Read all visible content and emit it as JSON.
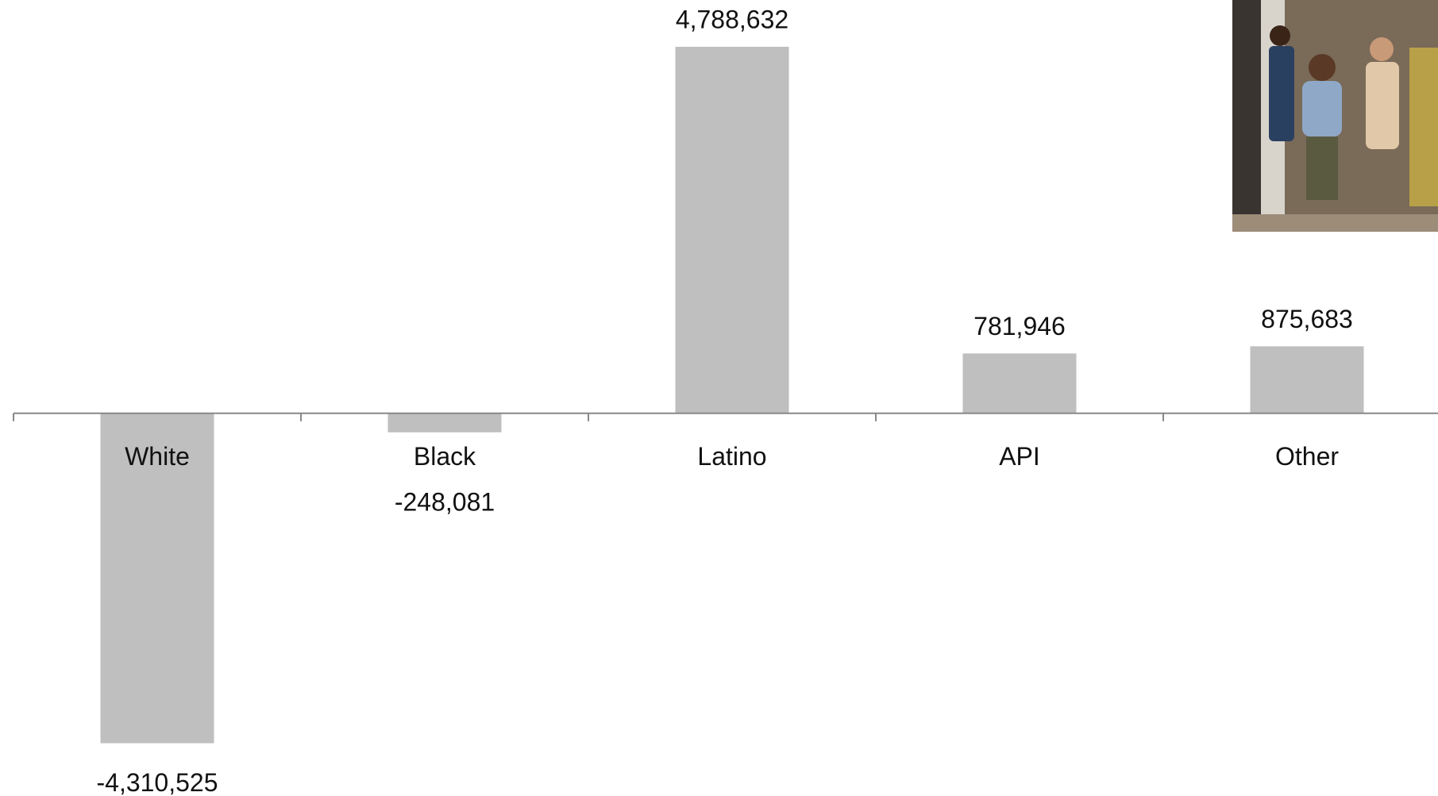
{
  "chart_data": {
    "type": "bar",
    "categories": [
      "White",
      "Black",
      "Latino",
      "API",
      "Other"
    ],
    "values": [
      -4310525,
      -248081,
      4788632,
      781946,
      875683
    ],
    "value_labels": [
      "-4,310,525",
      "-248,081",
      "4,788,632",
      "781,946",
      "875,683"
    ],
    "color": "#bfbfbf",
    "ylim": [
      -5000000,
      5400000
    ]
  }
}
